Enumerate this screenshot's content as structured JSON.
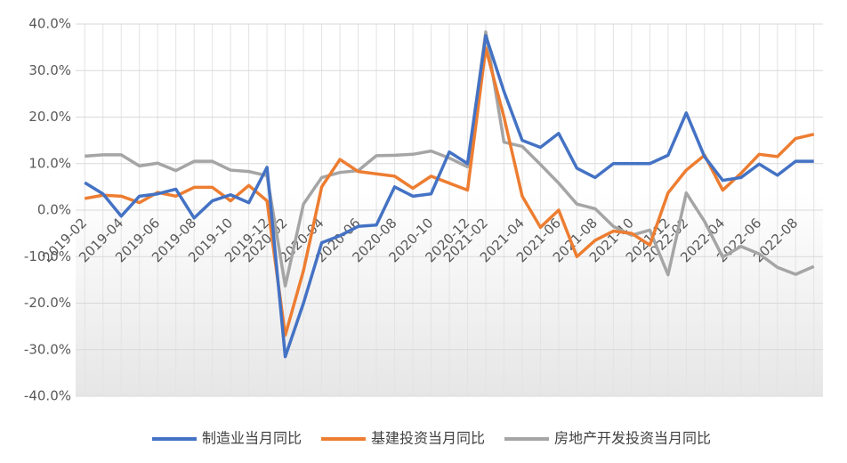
{
  "chart_data": {
    "type": "line",
    "categories": [
      "2019-02",
      null,
      "2019-04",
      null,
      "2019-06",
      null,
      "2019-08",
      null,
      "2019-10",
      null,
      "2019-12",
      "2020-02",
      null,
      "2020-04",
      null,
      "2020-06",
      null,
      "2020-08",
      null,
      "2020-10",
      null,
      "2020-12",
      "2021-02",
      null,
      "2021-04",
      null,
      "2021-06",
      null,
      "2021-08",
      null,
      "2021-10",
      null,
      "2021-12",
      "2022-02",
      null,
      "2022-04",
      null,
      "2022-06",
      null,
      "2022-08",
      null
    ],
    "series": [
      {
        "name": "制造业当月同比",
        "color": "#4472c4",
        "values": [
          5.9,
          3.5,
          -1.3,
          3.0,
          3.5,
          4.5,
          -1.7,
          2.0,
          3.3,
          1.6,
          9.2,
          -31.5,
          -20.0,
          -7.0,
          -5.5,
          -3.5,
          -3.2,
          5.0,
          3.0,
          3.5,
          12.5,
          10.0,
          37.5,
          25.5,
          15.0,
          13.5,
          16.5,
          9.0,
          7.0,
          10.0,
          10.0,
          10.0,
          11.8,
          20.9,
          11.5,
          6.4,
          7.0,
          9.9,
          7.5,
          10.5,
          10.5
        ]
      },
      {
        "name": "基建投资当月同比",
        "color": "#ed7d31",
        "values": [
          2.5,
          3.2,
          3.0,
          1.6,
          3.8,
          3.0,
          4.9,
          4.9,
          2.0,
          5.3,
          2.0,
          -26.9,
          -13.0,
          5.0,
          10.9,
          8.3,
          7.8,
          7.3,
          4.7,
          7.3,
          5.8,
          4.3,
          34.8,
          20.0,
          3.0,
          -3.7,
          0.0,
          -10.0,
          -6.5,
          -4.5,
          -5.0,
          -7.5,
          3.7,
          8.6,
          11.8,
          4.3,
          7.9,
          12.0,
          11.5,
          15.4,
          16.3
        ]
      },
      {
        "name": "房地产开发投资当月同比",
        "color": "#a5a5a5",
        "values": [
          11.6,
          11.9,
          11.9,
          9.5,
          10.1,
          8.5,
          10.5,
          10.5,
          8.6,
          8.3,
          7.4,
          -16.3,
          1.3,
          7.0,
          8.1,
          8.5,
          11.7,
          11.8,
          12.0,
          12.7,
          11.2,
          9.3,
          38.3,
          14.6,
          13.7,
          9.8,
          5.8,
          1.3,
          0.3,
          -3.5,
          -5.4,
          -4.3,
          -13.9,
          3.7,
          -2.4,
          -10.1,
          -7.8,
          -9.4,
          -12.3,
          -13.8,
          -12.1
        ]
      }
    ],
    "ylim": [
      -40,
      40
    ],
    "yticks": [
      {
        "value": -40,
        "label": "-40.0%"
      },
      {
        "value": -30,
        "label": "-30.0%"
      },
      {
        "value": -20,
        "label": "-20.0%"
      },
      {
        "value": -10,
        "label": "-10.0%"
      },
      {
        "value": 0,
        "label": "0.0%"
      },
      {
        "value": 10,
        "label": "10.0%"
      },
      {
        "value": 20,
        "label": "20.0%"
      },
      {
        "value": 30,
        "label": "30.0%"
      },
      {
        "value": 40,
        "label": "40.0%"
      }
    ],
    "legend": "bottom"
  }
}
